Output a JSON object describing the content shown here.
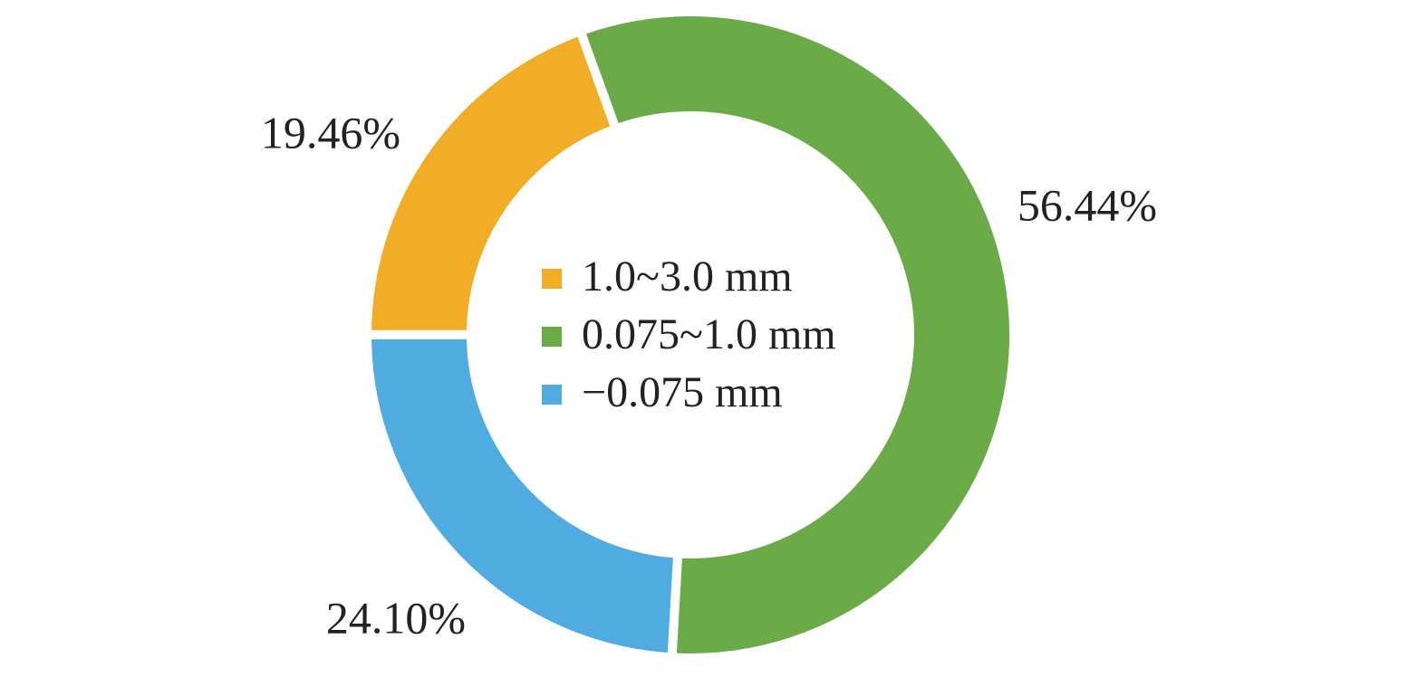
{
  "chart_data": {
    "type": "donut",
    "categories": [
      "1.0~3.0 mm",
      "0.075~1.0 mm",
      "−0.075 mm"
    ],
    "values": [
      19.46,
      56.44,
      24.1
    ],
    "value_labels": [
      "19.46%",
      "56.44%",
      "24.10%"
    ],
    "colors": [
      "#F0AD25",
      "#6AAB48",
      "#4FABE0"
    ],
    "legend": "center"
  }
}
